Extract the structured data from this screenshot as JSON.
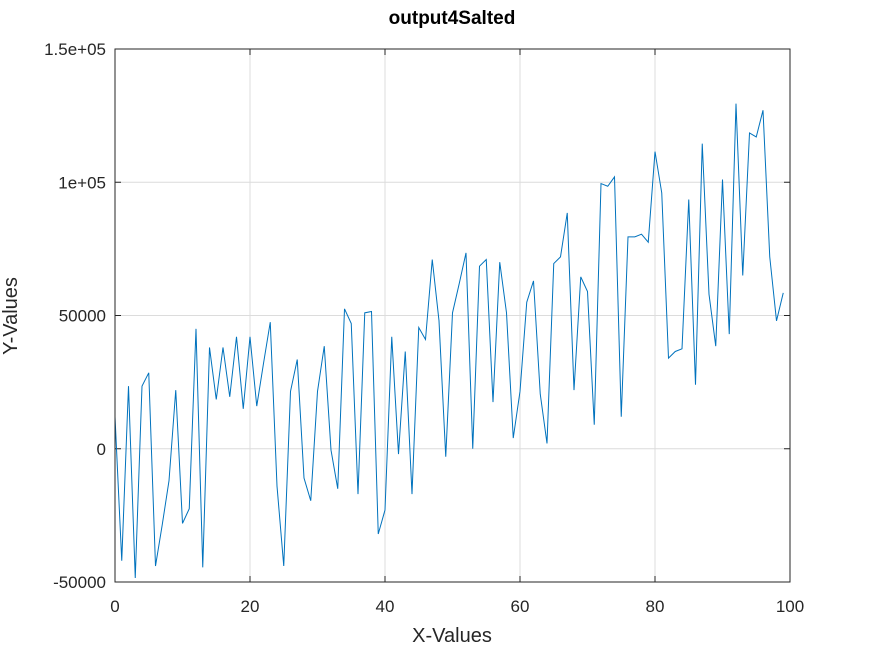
{
  "chart_data": {
    "type": "line",
    "title": "output4Salted",
    "xlabel": "X-Values",
    "ylabel": "Y-Values",
    "xlim": [
      0,
      100
    ],
    "ylim": [
      -50000,
      150000
    ],
    "xticks": [
      0,
      20,
      40,
      60,
      80,
      100
    ],
    "xtick_labels": [
      "0",
      "20",
      "40",
      "60",
      "80",
      "100"
    ],
    "yticks": [
      -50000,
      0,
      50000,
      100000,
      150000
    ],
    "ytick_labels": [
      "-50000",
      "0",
      "50000",
      "1e+05",
      "1.5e+05"
    ],
    "grid": true,
    "line_color": "#0072bd",
    "series": [
      {
        "x": [
          0,
          1,
          2,
          3,
          4,
          5,
          6,
          7,
          8,
          9,
          10,
          11,
          12,
          13,
          14,
          15,
          16,
          17,
          18,
          19,
          20,
          21,
          22,
          23,
          24,
          25,
          26,
          27,
          28,
          29,
          30,
          31,
          32,
          33,
          34,
          35,
          36,
          37,
          38,
          39,
          40,
          41,
          42,
          43,
          44,
          45,
          46,
          47,
          48,
          49,
          50,
          51,
          52,
          53,
          54,
          55,
          56,
          57,
          58,
          59,
          60,
          61,
          62,
          63,
          64,
          65,
          66,
          67,
          68,
          69,
          70,
          71,
          72,
          73,
          74,
          75,
          76,
          77,
          78,
          79,
          80,
          81,
          82,
          83,
          84,
          85,
          86,
          87,
          88,
          89,
          90,
          91,
          92,
          93,
          94,
          95,
          96,
          97,
          98,
          99
        ],
        "values": [
          12000,
          -42000,
          23500,
          -48500,
          23500,
          28500,
          -44000,
          -28500,
          -12000,
          22000,
          -28000,
          -22500,
          45000,
          -44500,
          38000,
          18500,
          38000,
          19500,
          42000,
          15000,
          42000,
          16000,
          32000,
          47500,
          -14000,
          -44000,
          21500,
          33500,
          -11000,
          -19500,
          21500,
          38500,
          -500,
          -15000,
          52500,
          47000,
          -17000,
          51000,
          51500,
          -32000,
          -23000,
          42000,
          -2000,
          36500,
          -17000,
          45500,
          41000,
          71000,
          48000,
          -3000,
          51000,
          62000,
          73500,
          0,
          68500,
          71000,
          17500,
          70000,
          51000,
          4000,
          21500,
          55000,
          63000,
          20500,
          2000,
          69500,
          72000,
          88500,
          22000,
          64500,
          59000,
          9000,
          99500,
          98500,
          102000,
          12000,
          79500,
          79500,
          80500,
          77500,
          111500,
          96000,
          34000,
          36500,
          37500,
          93500,
          24000,
          114500,
          58000,
          38500,
          101000,
          43000,
          129500,
          65000,
          118500,
          117000,
          127000,
          72000,
          48000,
          58500
        ]
      }
    ]
  }
}
